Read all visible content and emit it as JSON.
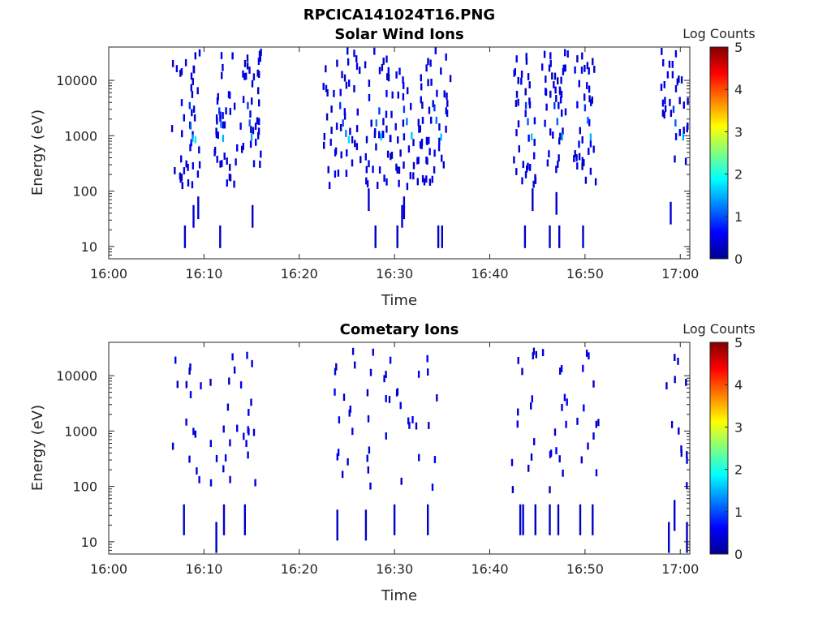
{
  "figure_title": "RPCICA141024T16.PNG",
  "colors": {
    "axis": "#262626",
    "colormap": [
      "#00008f",
      "#0000ff",
      "#0080ff",
      "#00ffff",
      "#80ff80",
      "#ffff00",
      "#ff8000",
      "#ff0000",
      "#800000"
    ]
  },
  "chart_data": [
    {
      "type": "heatmap",
      "title": "Solar Wind Ions",
      "xlabel": "Time",
      "ylabel": "Energy (eV)",
      "x_ticks": [
        "16:00",
        "16:10",
        "16:20",
        "16:30",
        "16:40",
        "16:50",
        "17:00"
      ],
      "y_ticks": [
        "10",
        "100",
        "1000",
        "10000"
      ],
      "y_scale": "log",
      "ylim": [
        6,
        40000
      ],
      "xlim_minutes": [
        0,
        61
      ],
      "colorbar": {
        "label": "Log Counts",
        "range": [
          0,
          5
        ],
        "ticks": [
          "0",
          "1",
          "2",
          "3",
          "4",
          "5"
        ]
      },
      "cells": [
        {
          "t": 8.0,
          "e": 15,
          "v": 0.3
        },
        {
          "t": 11.7,
          "e": 15,
          "v": 0.3
        },
        {
          "t": 28.0,
          "e": 15,
          "v": 0.3
        },
        {
          "t": 30.3,
          "e": 15,
          "v": 0.3
        },
        {
          "t": 34.6,
          "e": 15,
          "v": 0.3
        },
        {
          "t": 35.0,
          "e": 15,
          "v": 0.3
        },
        {
          "t": 43.7,
          "e": 15,
          "v": 0.3
        },
        {
          "t": 46.3,
          "e": 15,
          "v": 0.3
        },
        {
          "t": 47.3,
          "e": 15,
          "v": 0.3
        },
        {
          "t": 49.8,
          "e": 15,
          "v": 0.3
        },
        {
          "t": 8.9,
          "e": 35,
          "v": 0.4
        },
        {
          "t": 9.4,
          "e": 50,
          "v": 0.4
        },
        {
          "t": 15.1,
          "e": 35,
          "v": 0.4
        },
        {
          "t": 30.8,
          "e": 35,
          "v": 0.4
        },
        {
          "t": 31.0,
          "e": 50,
          "v": 0.4
        },
        {
          "t": 47.0,
          "e": 60,
          "v": 0.4
        },
        {
          "t": 59.0,
          "e": 40,
          "v": 0.4
        },
        {
          "t": 27.3,
          "e": 70,
          "v": 0.3
        },
        {
          "t": 44.5,
          "e": 70,
          "v": 0.3
        },
        {
          "t": 8.8,
          "e": 900,
          "v": 1.4
        },
        {
          "t": 9.1,
          "e": 850,
          "v": 1.8
        },
        {
          "t": 8.6,
          "e": 1500,
          "v": 1.1
        },
        {
          "t": 8.5,
          "e": 3500,
          "v": 0.9
        },
        {
          "t": 12.0,
          "e": 900,
          "v": 1.5
        },
        {
          "t": 11.8,
          "e": 1600,
          "v": 1.2
        },
        {
          "t": 11.6,
          "e": 2800,
          "v": 0.9
        },
        {
          "t": 15.0,
          "e": 950,
          "v": 1.4
        },
        {
          "t": 14.8,
          "e": 1700,
          "v": 1.1
        },
        {
          "t": 14.6,
          "e": 3500,
          "v": 0.9
        },
        {
          "t": 24.9,
          "e": 1100,
          "v": 1.3
        },
        {
          "t": 25.2,
          "e": 850,
          "v": 1.7
        },
        {
          "t": 24.6,
          "e": 1700,
          "v": 1.0
        },
        {
          "t": 24.3,
          "e": 3500,
          "v": 0.9
        },
        {
          "t": 28.1,
          "e": 1700,
          "v": 1.2
        },
        {
          "t": 28.6,
          "e": 950,
          "v": 1.6
        },
        {
          "t": 28.4,
          "e": 2800,
          "v": 0.9
        },
        {
          "t": 31.3,
          "e": 1800,
          "v": 1.2
        },
        {
          "t": 31.8,
          "e": 1000,
          "v": 1.6
        },
        {
          "t": 31.0,
          "e": 3000,
          "v": 0.9
        },
        {
          "t": 34.4,
          "e": 1900,
          "v": 1.2
        },
        {
          "t": 34.9,
          "e": 950,
          "v": 1.6
        },
        {
          "t": 34.2,
          "e": 3200,
          "v": 0.9
        },
        {
          "t": 44.0,
          "e": 1800,
          "v": 1.1
        },
        {
          "t": 44.4,
          "e": 950,
          "v": 1.6
        },
        {
          "t": 43.8,
          "e": 3500,
          "v": 0.9
        },
        {
          "t": 47.1,
          "e": 1800,
          "v": 1.1
        },
        {
          "t": 47.6,
          "e": 950,
          "v": 1.5
        },
        {
          "t": 46.8,
          "e": 3500,
          "v": 0.9
        },
        {
          "t": 50.3,
          "e": 1900,
          "v": 1.1
        },
        {
          "t": 50.6,
          "e": 950,
          "v": 1.5
        },
        {
          "t": 50.0,
          "e": 3200,
          "v": 0.9
        },
        {
          "t": 59.5,
          "e": 1700,
          "v": 1.1
        },
        {
          "t": 60.3,
          "e": 950,
          "v": 1.5
        },
        {
          "t": 59.3,
          "e": 3000,
          "v": 0.9
        }
      ],
      "scatter_seed": 11,
      "scatter_groups": [
        {
          "t0": 6.6,
          "t1": 10.0,
          "n": 40
        },
        {
          "t0": 11.0,
          "t1": 13.5,
          "n": 35
        },
        {
          "t0": 13.8,
          "t1": 16.0,
          "n": 35
        },
        {
          "t0": 22.5,
          "t1": 26.5,
          "n": 45
        },
        {
          "t0": 26.8,
          "t1": 29.8,
          "n": 40
        },
        {
          "t0": 30.0,
          "t1": 33.2,
          "n": 40
        },
        {
          "t0": 33.3,
          "t1": 36.0,
          "n": 35
        },
        {
          "t0": 42.5,
          "t1": 45.0,
          "n": 35
        },
        {
          "t0": 45.5,
          "t1": 48.2,
          "n": 40
        },
        {
          "t0": 48.8,
          "t1": 51.5,
          "n": 35
        },
        {
          "t0": 58.0,
          "t1": 60.8,
          "n": 30
        }
      ]
    },
    {
      "type": "heatmap",
      "title": "Cometary Ions",
      "xlabel": "Time",
      "ylabel": "Energy (eV)",
      "x_ticks": [
        "16:00",
        "16:10",
        "16:20",
        "16:30",
        "16:40",
        "16:50",
        "17:00"
      ],
      "y_ticks": [
        "10",
        "100",
        "1000",
        "10000"
      ],
      "y_scale": "log",
      "ylim": [
        6,
        40000
      ],
      "xlim_minutes": [
        0,
        61
      ],
      "colorbar": {
        "label": "Log Counts",
        "range": [
          0,
          5
        ],
        "ticks": [
          "0",
          "1",
          "2",
          "3",
          "4",
          "5"
        ]
      },
      "cells": [
        {
          "t": 7.9,
          "e": 25,
          "v": 0.3
        },
        {
          "t": 11.3,
          "e": 12,
          "v": 0.3
        },
        {
          "t": 12.1,
          "e": 25,
          "v": 0.3
        },
        {
          "t": 14.3,
          "e": 25,
          "v": 0.3
        },
        {
          "t": 24.0,
          "e": 20,
          "v": 0.3
        },
        {
          "t": 27.0,
          "e": 20,
          "v": 0.3
        },
        {
          "t": 30.0,
          "e": 25,
          "v": 0.3
        },
        {
          "t": 33.5,
          "e": 25,
          "v": 0.3
        },
        {
          "t": 43.2,
          "e": 25,
          "v": 0.4
        },
        {
          "t": 43.5,
          "e": 25,
          "v": 0.4
        },
        {
          "t": 44.8,
          "e": 25,
          "v": 0.3
        },
        {
          "t": 46.3,
          "e": 25,
          "v": 0.3
        },
        {
          "t": 47.2,
          "e": 25,
          "v": 0.3
        },
        {
          "t": 49.5,
          "e": 25,
          "v": 0.3
        },
        {
          "t": 50.8,
          "e": 25,
          "v": 0.3
        },
        {
          "t": 58.8,
          "e": 12,
          "v": 0.3
        },
        {
          "t": 59.4,
          "e": 30,
          "v": 0.4
        },
        {
          "t": 60.7,
          "e": 12,
          "v": 0.3
        }
      ],
      "scatter_seed": 29,
      "scatter_groups": [
        {
          "t0": 6.6,
          "t1": 10.0,
          "n": 14
        },
        {
          "t0": 10.5,
          "t1": 13.5,
          "n": 14
        },
        {
          "t0": 13.8,
          "t1": 16.0,
          "n": 12
        },
        {
          "t0": 23.5,
          "t1": 26.5,
          "n": 14
        },
        {
          "t0": 26.8,
          "t1": 29.8,
          "n": 14
        },
        {
          "t0": 30.0,
          "t1": 34.5,
          "n": 16
        },
        {
          "t0": 42.2,
          "t1": 45.0,
          "n": 14
        },
        {
          "t0": 45.5,
          "t1": 48.2,
          "n": 14
        },
        {
          "t0": 48.8,
          "t1": 51.5,
          "n": 12
        },
        {
          "t0": 58.0,
          "t1": 60.8,
          "n": 12
        }
      ]
    }
  ]
}
